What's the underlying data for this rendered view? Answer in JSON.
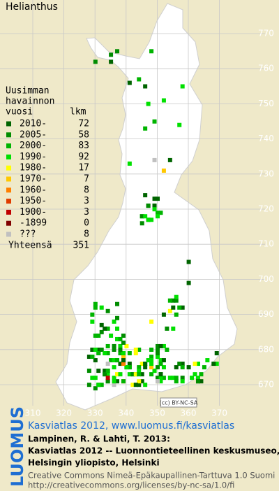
{
  "title": "Helianthus",
  "legend": {
    "heading": [
      "Uusimman",
      "havainnon"
    ],
    "year_label": "vuosi",
    "count_label": "lkm",
    "rows": [
      {
        "label": "2010-",
        "count": 72,
        "color": "#006400"
      },
      {
        "label": "2005-",
        "count": 58,
        "color": "#008c00"
      },
      {
        "label": "2000-",
        "count": 83,
        "color": "#00b400"
      },
      {
        "label": "1990-",
        "count": 92,
        "color": "#00e000"
      },
      {
        "label": "1980-",
        "count": 17,
        "color": "#ffff00"
      },
      {
        "label": "1970-",
        "count": 7,
        "color": "#ffc800"
      },
      {
        "label": "1960-",
        "count": 8,
        "color": "#ff8000"
      },
      {
        "label": "1950-",
        "count": 3,
        "color": "#e03c00"
      },
      {
        "label": "1900-",
        "count": 3,
        "color": "#c00000"
      },
      {
        "label": "-1899",
        "count": 0,
        "color": "#800000"
      },
      {
        "label": "???",
        "count": 8,
        "color": "#c0c0c0"
      }
    ],
    "total_label": "Yhteensä",
    "total": 351
  },
  "grid": {
    "y_labels": [
      "770",
      "760",
      "750",
      "740",
      "730",
      "720",
      "710",
      "700",
      "690",
      "680",
      "670"
    ],
    "x_labels": [
      "310",
      "320",
      "330",
      "340",
      "350",
      "360",
      "370"
    ]
  },
  "license_badge": "(cc) BY-NC-SA",
  "footer": {
    "brand": "LUOMUS",
    "link": "Kasviatlas 2012, www.luomus.fi/kasviatlas",
    "citation": [
      "Lampinen, R. & Lahti, T. 2013:",
      "Kasviatlas 2012 -- Luonnontieteellinen keskusmuseo,",
      "Helsingin yliopisto, Helsinki"
    ],
    "license": [
      "Creative Commons Nimeä-Epäkaupallinen-Tarttuva 1.0 Suomi",
      "http://creativecommons.org/licenses/by-nc-sa/1.0/fi"
    ]
  }
}
